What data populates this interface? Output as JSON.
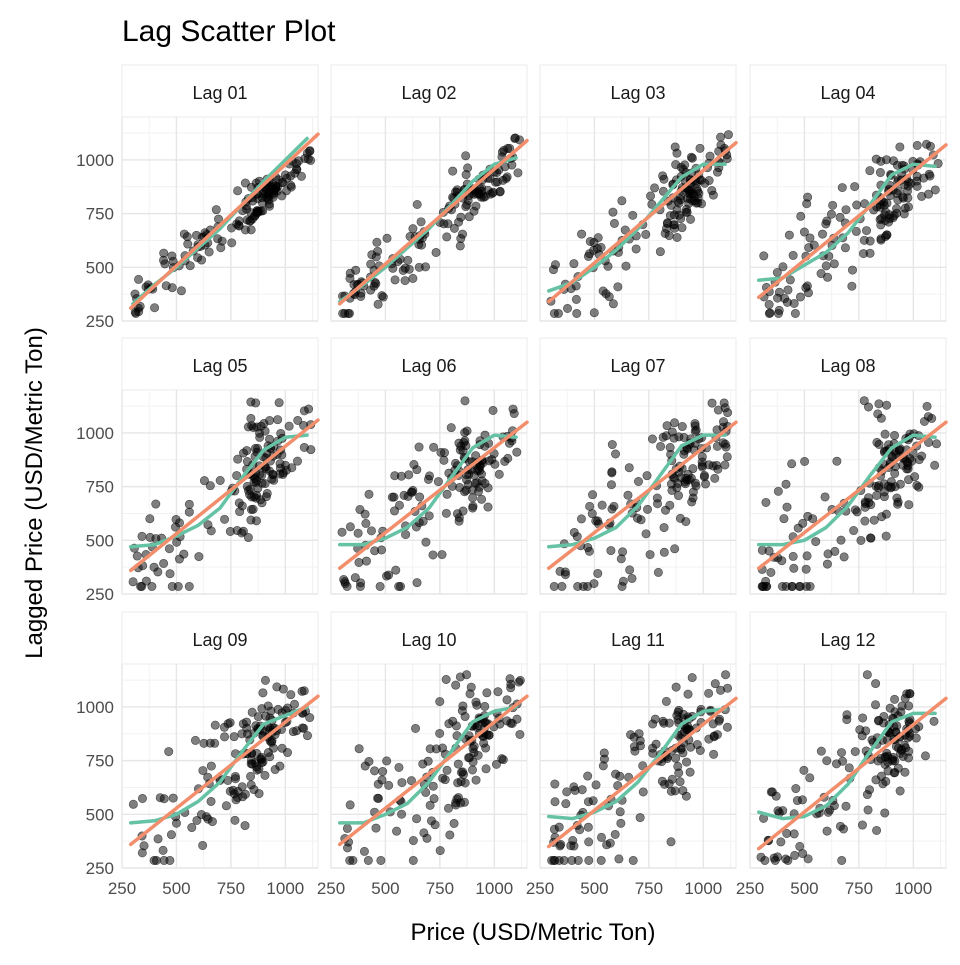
{
  "chart_data": {
    "type": "scatter",
    "title": "Lag Scatter Plot",
    "xlabel": "Price (USD/Metric Ton)",
    "ylabel": "Lagged Price (USD/Metric Ton)",
    "xlim": [
      250,
      1150
    ],
    "ylim": [
      250,
      1200
    ],
    "x_ticks": [
      250,
      500,
      750,
      1000
    ],
    "y_ticks": [
      250,
      500,
      750,
      1000
    ],
    "grid": true,
    "facet_layout": {
      "rows": 3,
      "cols": 4
    },
    "line_colors": {
      "linear_fit": "#F28E6B",
      "smooth_fit": "#66C2A5"
    },
    "point_color": "#000000",
    "point_opacity": 0.5,
    "panels": [
      {
        "label": "Lag 01",
        "spread": 60,
        "smooth": [
          [
            300,
            330
          ],
          [
            400,
            420
          ],
          [
            500,
            500
          ],
          [
            600,
            590
          ],
          [
            700,
            680
          ],
          [
            800,
            790
          ],
          [
            900,
            900
          ],
          [
            1000,
            1000
          ],
          [
            1100,
            1100
          ]
        ],
        "linear": [
          [
            290,
            310
          ],
          [
            1150,
            1120
          ]
        ]
      },
      {
        "label": "Lag 02",
        "spread": 90,
        "smooth": [
          [
            290,
            340
          ],
          [
            400,
            420
          ],
          [
            500,
            500
          ],
          [
            600,
            590
          ],
          [
            700,
            680
          ],
          [
            800,
            790
          ],
          [
            900,
            900
          ],
          [
            1000,
            980
          ],
          [
            1100,
            1010
          ]
        ],
        "linear": [
          [
            290,
            330
          ],
          [
            1150,
            1090
          ]
        ]
      },
      {
        "label": "Lag 03",
        "spread": 120,
        "smooth": [
          [
            290,
            390
          ],
          [
            400,
            430
          ],
          [
            500,
            500
          ],
          [
            600,
            580
          ],
          [
            700,
            680
          ],
          [
            800,
            800
          ],
          [
            900,
            920
          ],
          [
            1000,
            980
          ],
          [
            1100,
            980
          ]
        ],
        "linear": [
          [
            290,
            340
          ],
          [
            1150,
            1080
          ]
        ]
      },
      {
        "label": "Lag 04",
        "spread": 140,
        "smooth": [
          [
            290,
            440
          ],
          [
            400,
            450
          ],
          [
            500,
            510
          ],
          [
            600,
            570
          ],
          [
            700,
            660
          ],
          [
            800,
            790
          ],
          [
            900,
            930
          ],
          [
            1000,
            980
          ],
          [
            1100,
            970
          ]
        ],
        "linear": [
          [
            290,
            360
          ],
          [
            1150,
            1070
          ]
        ]
      },
      {
        "label": "Lag 05",
        "spread": 155,
        "smooth": [
          [
            290,
            470
          ],
          [
            400,
            480
          ],
          [
            500,
            520
          ],
          [
            600,
            570
          ],
          [
            700,
            650
          ],
          [
            800,
            790
          ],
          [
            900,
            920
          ],
          [
            1000,
            980
          ],
          [
            1100,
            990
          ]
        ],
        "linear": [
          [
            290,
            360
          ],
          [
            1150,
            1060
          ]
        ]
      },
      {
        "label": "Lag 06",
        "spread": 160,
        "smooth": [
          [
            290,
            480
          ],
          [
            400,
            480
          ],
          [
            500,
            510
          ],
          [
            600,
            560
          ],
          [
            700,
            650
          ],
          [
            800,
            790
          ],
          [
            900,
            930
          ],
          [
            1000,
            990
          ],
          [
            1100,
            980
          ]
        ],
        "linear": [
          [
            290,
            370
          ],
          [
            1150,
            1050
          ]
        ]
      },
      {
        "label": "Lag 07",
        "spread": 165,
        "smooth": [
          [
            290,
            470
          ],
          [
            400,
            480
          ],
          [
            500,
            510
          ],
          [
            600,
            560
          ],
          [
            700,
            660
          ],
          [
            800,
            800
          ],
          [
            900,
            940
          ],
          [
            1000,
            990
          ],
          [
            1100,
            990
          ]
        ],
        "linear": [
          [
            290,
            370
          ],
          [
            1150,
            1050
          ]
        ]
      },
      {
        "label": "Lag 08",
        "spread": 170,
        "smooth": [
          [
            290,
            480
          ],
          [
            400,
            480
          ],
          [
            500,
            500
          ],
          [
            600,
            560
          ],
          [
            700,
            660
          ],
          [
            800,
            800
          ],
          [
            900,
            930
          ],
          [
            1000,
            990
          ],
          [
            1100,
            980
          ]
        ],
        "linear": [
          [
            290,
            370
          ],
          [
            1150,
            1050
          ]
        ]
      },
      {
        "label": "Lag 09",
        "spread": 175,
        "smooth": [
          [
            290,
            460
          ],
          [
            400,
            470
          ],
          [
            500,
            500
          ],
          [
            600,
            560
          ],
          [
            700,
            650
          ],
          [
            800,
            790
          ],
          [
            900,
            920
          ],
          [
            1000,
            960
          ],
          [
            1100,
            1000
          ]
        ],
        "linear": [
          [
            290,
            360
          ],
          [
            1150,
            1050
          ]
        ]
      },
      {
        "label": "Lag 10",
        "spread": 175,
        "smooth": [
          [
            290,
            460
          ],
          [
            400,
            460
          ],
          [
            500,
            500
          ],
          [
            600,
            550
          ],
          [
            700,
            650
          ],
          [
            800,
            790
          ],
          [
            900,
            930
          ],
          [
            1000,
            980
          ],
          [
            1100,
            1000
          ]
        ],
        "linear": [
          [
            290,
            360
          ],
          [
            1150,
            1050
          ]
        ]
      },
      {
        "label": "Lag 11",
        "spread": 175,
        "smooth": [
          [
            290,
            490
          ],
          [
            400,
            480
          ],
          [
            500,
            510
          ],
          [
            600,
            560
          ],
          [
            700,
            650
          ],
          [
            800,
            780
          ],
          [
            900,
            920
          ],
          [
            1000,
            980
          ],
          [
            1100,
            990
          ]
        ],
        "linear": [
          [
            290,
            350
          ],
          [
            1150,
            1040
          ]
        ]
      },
      {
        "label": "Lag 12",
        "spread": 175,
        "smooth": [
          [
            290,
            510
          ],
          [
            400,
            480
          ],
          [
            500,
            490
          ],
          [
            600,
            540
          ],
          [
            700,
            640
          ],
          [
            800,
            790
          ],
          [
            900,
            930
          ],
          [
            1000,
            970
          ],
          [
            1100,
            970
          ]
        ],
        "linear": [
          [
            290,
            340
          ],
          [
            1150,
            1040
          ]
        ]
      }
    ]
  }
}
